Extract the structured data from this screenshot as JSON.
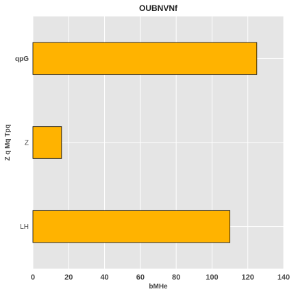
{
  "chart_data": {
    "type": "bar",
    "orientation": "horizontal",
    "title": "OUBNVNf",
    "xlabel": "bMHe",
    "ylabel": "Z  q Mq Tpq",
    "categories": [
      "LH",
      "Z",
      "qpG"
    ],
    "values": [
      110,
      16,
      125
    ],
    "xlim": [
      0,
      140
    ],
    "xticks": [
      0,
      20,
      40,
      60,
      80,
      100,
      120,
      140
    ],
    "bar_color": "#FFB300",
    "edge_color": "#000000",
    "background_color": "#E5E5E5",
    "grid_color": "#FFFFFF",
    "grid": true,
    "legend": "none"
  }
}
